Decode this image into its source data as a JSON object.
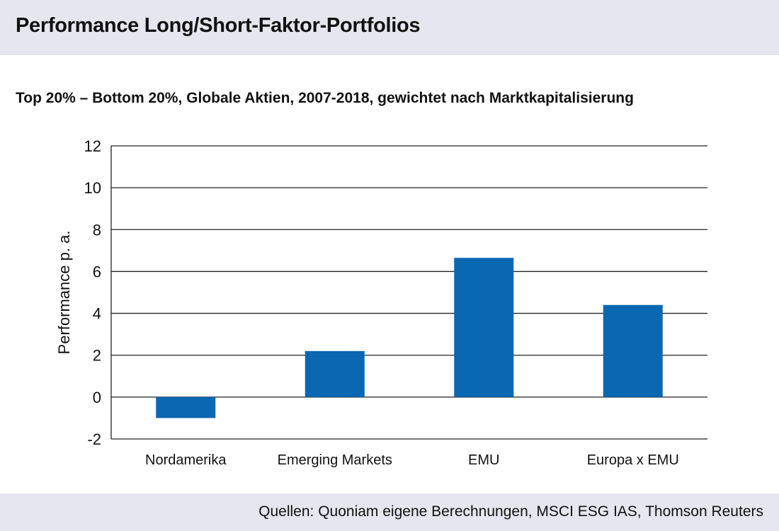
{
  "header": {
    "title": "Performance Long/Short-Faktor-Portfolios"
  },
  "chart_data": {
    "type": "bar",
    "title": "Performance Long/Short-Faktor-Portfolios",
    "subtitle": "Top 20% – Bottom 20%, Globale Aktien, 2007-2018, gewichtet nach Marktkapitalisierung",
    "xlabel": "",
    "ylabel": "Performance p. a.",
    "categories": [
      "Nordamerika",
      "Emerging Markets",
      "EMU",
      "Europa x EMU"
    ],
    "values": [
      -1.0,
      2.2,
      6.65,
      4.4
    ],
    "ylim": [
      -2,
      12
    ],
    "yticks": [
      -2,
      0,
      2,
      4,
      6,
      8,
      10,
      12
    ],
    "ytick_labels": [
      "-2",
      "0",
      "2",
      "4",
      "6",
      "8",
      "10",
      "12"
    ],
    "grid": true,
    "bar_color": "#0a67b1",
    "grid_color": "#222222"
  },
  "footer": {
    "source": "Quellen: Quoniam eigene Berechnungen, MSCI ESG IAS, Thomson Reuters"
  }
}
